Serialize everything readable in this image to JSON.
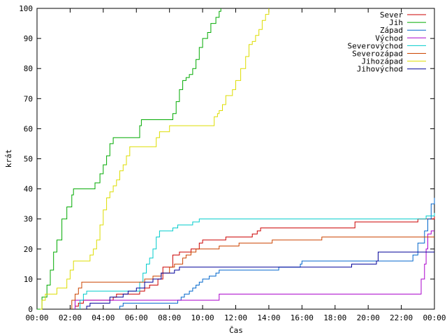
{
  "chart_data": {
    "type": "line",
    "title": "",
    "xlabel": "Čas",
    "ylabel": "krát",
    "xlim": [
      0,
      24
    ],
    "ylim": [
      0,
      100
    ],
    "x_ticks": [
      "00:00",
      "02:00",
      "04:00",
      "06:00",
      "08:00",
      "10:00",
      "12:00",
      "14:00",
      "16:00",
      "18:00",
      "20:00",
      "22:00",
      "00:00"
    ],
    "y_ticks": [
      0,
      10,
      20,
      30,
      40,
      50,
      60,
      70,
      80,
      90,
      100
    ],
    "legend_position": "top-right",
    "grid": false,
    "series": [
      {
        "name": "Sever",
        "color": "#cc0000",
        "points": [
          [
            2.3,
            0
          ],
          [
            2.3,
            1
          ],
          [
            2.5,
            2
          ],
          [
            2.8,
            3
          ],
          [
            3.5,
            3
          ],
          [
            4.4,
            3
          ],
          [
            4.6,
            4
          ],
          [
            4.8,
            5
          ],
          [
            5.5,
            5
          ],
          [
            6.2,
            6
          ],
          [
            6.5,
            7
          ],
          [
            6.8,
            8
          ],
          [
            7.3,
            10
          ],
          [
            7.6,
            14
          ],
          [
            8.2,
            18
          ],
          [
            8.6,
            19
          ],
          [
            9.0,
            19
          ],
          [
            9.3,
            20
          ],
          [
            9.8,
            22
          ],
          [
            10.0,
            23
          ],
          [
            11.0,
            23
          ],
          [
            11.4,
            24
          ],
          [
            12.6,
            24
          ],
          [
            13.0,
            25
          ],
          [
            13.3,
            26
          ],
          [
            13.5,
            27
          ],
          [
            16.0,
            27
          ],
          [
            19.0,
            27
          ],
          [
            19.2,
            29
          ],
          [
            22.5,
            29
          ],
          [
            23.0,
            30
          ],
          [
            23.5,
            30
          ],
          [
            24,
            31
          ]
        ]
      },
      {
        "name": "Jih",
        "color": "#00aa00",
        "points": [
          [
            0,
            0
          ],
          [
            0.3,
            4
          ],
          [
            0.6,
            8
          ],
          [
            0.8,
            13
          ],
          [
            1.0,
            19
          ],
          [
            1.2,
            23
          ],
          [
            1.5,
            30
          ],
          [
            1.8,
            34
          ],
          [
            2.1,
            38
          ],
          [
            2.2,
            40
          ],
          [
            3.4,
            40
          ],
          [
            3.5,
            42
          ],
          [
            3.8,
            45
          ],
          [
            4.0,
            48
          ],
          [
            4.2,
            51
          ],
          [
            4.4,
            55
          ],
          [
            4.6,
            57
          ],
          [
            6.0,
            57
          ],
          [
            6.2,
            61
          ],
          [
            6.3,
            63
          ],
          [
            8.0,
            63
          ],
          [
            8.2,
            65
          ],
          [
            8.4,
            69
          ],
          [
            8.6,
            73
          ],
          [
            8.8,
            76
          ],
          [
            9.0,
            77
          ],
          [
            9.2,
            78
          ],
          [
            9.4,
            80
          ],
          [
            9.6,
            83
          ],
          [
            9.8,
            87
          ],
          [
            10.0,
            90
          ],
          [
            10.3,
            92
          ],
          [
            10.5,
            95
          ],
          [
            10.8,
            97
          ],
          [
            11.0,
            99
          ],
          [
            11.1,
            100
          ]
        ]
      },
      {
        "name": "Západ",
        "color": "#0066cc",
        "points": [
          [
            5.0,
            0
          ],
          [
            5.0,
            1
          ],
          [
            5.2,
            2
          ],
          [
            6.0,
            2
          ],
          [
            6.5,
            2
          ],
          [
            8.0,
            2
          ],
          [
            8.5,
            3
          ],
          [
            8.7,
            4
          ],
          [
            8.9,
            5
          ],
          [
            9.2,
            6
          ],
          [
            9.4,
            7
          ],
          [
            9.6,
            8
          ],
          [
            9.8,
            9
          ],
          [
            10.0,
            10
          ],
          [
            10.2,
            10
          ],
          [
            10.4,
            11
          ],
          [
            10.8,
            12
          ],
          [
            11.0,
            13
          ],
          [
            12.0,
            13
          ],
          [
            14.0,
            13
          ],
          [
            14.6,
            14
          ],
          [
            15.7,
            14
          ],
          [
            15.9,
            15
          ],
          [
            16.0,
            16
          ],
          [
            18.0,
            16
          ],
          [
            20.5,
            16
          ],
          [
            21.5,
            16
          ],
          [
            22.5,
            16
          ],
          [
            22.7,
            18
          ],
          [
            23.0,
            22
          ],
          [
            23.4,
            26
          ],
          [
            23.6,
            30
          ],
          [
            23.8,
            35
          ],
          [
            24,
            37
          ]
        ]
      },
      {
        "name": "Východ",
        "color": "#aa00cc",
        "points": [
          [
            2.3,
            0
          ],
          [
            2.3,
            3
          ],
          [
            2.5,
            3
          ],
          [
            6.0,
            3
          ],
          [
            8.0,
            3
          ],
          [
            10.8,
            3
          ],
          [
            11.0,
            5
          ],
          [
            15.0,
            5
          ],
          [
            19.0,
            5
          ],
          [
            22.5,
            5
          ],
          [
            23.0,
            5
          ],
          [
            23.2,
            10
          ],
          [
            23.4,
            15
          ],
          [
            23.5,
            20
          ],
          [
            23.6,
            25
          ],
          [
            23.8,
            26
          ],
          [
            24,
            26
          ]
        ]
      },
      {
        "name": "Severovýchod",
        "color": "#00cccc",
        "points": [
          [
            2.6,
            0
          ],
          [
            2.6,
            3
          ],
          [
            2.8,
            5
          ],
          [
            3.0,
            6
          ],
          [
            5.0,
            6
          ],
          [
            5.5,
            6
          ],
          [
            6.0,
            6
          ],
          [
            6.2,
            9
          ],
          [
            6.4,
            12
          ],
          [
            6.6,
            15
          ],
          [
            6.8,
            17
          ],
          [
            7.0,
            20
          ],
          [
            7.2,
            24
          ],
          [
            7.4,
            26
          ],
          [
            7.8,
            26
          ],
          [
            8.2,
            27
          ],
          [
            8.5,
            28
          ],
          [
            9.0,
            28
          ],
          [
            9.4,
            29
          ],
          [
            9.8,
            30
          ],
          [
            12.0,
            30
          ],
          [
            16.0,
            30
          ],
          [
            20.0,
            30
          ],
          [
            22.5,
            30
          ],
          [
            23.0,
            30
          ],
          [
            23.5,
            31
          ],
          [
            24,
            32
          ]
        ]
      },
      {
        "name": "Severozápad",
        "color": "#cc4400",
        "points": [
          [
            2.1,
            0
          ],
          [
            2.1,
            3
          ],
          [
            2.3,
            5
          ],
          [
            2.5,
            7
          ],
          [
            2.7,
            9
          ],
          [
            4.0,
            9
          ],
          [
            6.0,
            9
          ],
          [
            6.5,
            10
          ],
          [
            7.0,
            11
          ],
          [
            7.5,
            12
          ],
          [
            8.0,
            14
          ],
          [
            8.3,
            15
          ],
          [
            8.8,
            17
          ],
          [
            9.0,
            18
          ],
          [
            9.3,
            19
          ],
          [
            9.6,
            20
          ],
          [
            10.5,
            20
          ],
          [
            11.0,
            21
          ],
          [
            12.0,
            21
          ],
          [
            12.2,
            22
          ],
          [
            14.0,
            22
          ],
          [
            14.2,
            23
          ],
          [
            16.0,
            23
          ],
          [
            17.0,
            23
          ],
          [
            17.2,
            24
          ],
          [
            20.0,
            24
          ],
          [
            22.5,
            24
          ],
          [
            23.0,
            24
          ],
          [
            24,
            24
          ]
        ]
      },
      {
        "name": "Jihozápad",
        "color": "#dddd00",
        "points": [
          [
            0.2,
            0
          ],
          [
            0.3,
            3
          ],
          [
            0.5,
            5
          ],
          [
            1.0,
            5
          ],
          [
            1.2,
            7
          ],
          [
            1.6,
            7
          ],
          [
            1.8,
            10
          ],
          [
            2.0,
            13
          ],
          [
            2.2,
            16
          ],
          [
            3.0,
            16
          ],
          [
            3.2,
            18
          ],
          [
            3.4,
            20
          ],
          [
            3.6,
            23
          ],
          [
            3.8,
            28
          ],
          [
            4.0,
            33
          ],
          [
            4.2,
            37
          ],
          [
            4.4,
            39
          ],
          [
            4.6,
            41
          ],
          [
            4.8,
            43
          ],
          [
            5.0,
            46
          ],
          [
            5.2,
            48
          ],
          [
            5.4,
            51
          ],
          [
            5.6,
            54
          ],
          [
            7.0,
            54
          ],
          [
            7.2,
            57
          ],
          [
            7.4,
            59
          ],
          [
            7.8,
            59
          ],
          [
            8.0,
            61
          ],
          [
            9.0,
            61
          ],
          [
            10.5,
            61
          ],
          [
            10.7,
            64
          ],
          [
            10.9,
            65
          ],
          [
            11.0,
            66
          ],
          [
            11.2,
            68
          ],
          [
            11.4,
            71
          ],
          [
            11.8,
            73
          ],
          [
            12.0,
            76
          ],
          [
            12.3,
            80
          ],
          [
            12.6,
            84
          ],
          [
            12.8,
            88
          ],
          [
            13.0,
            89
          ],
          [
            13.2,
            91
          ],
          [
            13.4,
            93
          ],
          [
            13.6,
            96
          ],
          [
            13.8,
            98
          ],
          [
            14.0,
            100
          ]
        ]
      },
      {
        "name": "Jihovýchod",
        "color": "#000099",
        "points": [
          [
            3.0,
            0
          ],
          [
            3.0,
            1
          ],
          [
            3.2,
            2
          ],
          [
            4.2,
            2
          ],
          [
            4.4,
            4
          ],
          [
            5.0,
            4
          ],
          [
            5.2,
            5
          ],
          [
            5.5,
            6
          ],
          [
            6.0,
            7
          ],
          [
            6.5,
            9
          ],
          [
            7.0,
            10
          ],
          [
            7.5,
            12
          ],
          [
            8.0,
            12
          ],
          [
            8.3,
            13
          ],
          [
            8.6,
            14
          ],
          [
            9.0,
            14
          ],
          [
            10.0,
            14
          ],
          [
            11.0,
            14
          ],
          [
            13.0,
            14
          ],
          [
            14.0,
            14
          ],
          [
            16.0,
            14
          ],
          [
            18.0,
            14
          ],
          [
            19.0,
            15
          ],
          [
            20.0,
            15
          ],
          [
            20.5,
            16
          ],
          [
            20.6,
            19
          ],
          [
            22.0,
            19
          ],
          [
            23.0,
            19
          ],
          [
            24,
            19
          ]
        ]
      }
    ]
  }
}
